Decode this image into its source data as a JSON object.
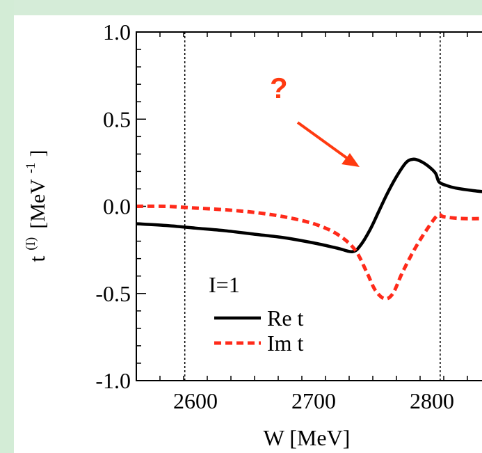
{
  "chart_data": {
    "type": "line",
    "title": "",
    "ylabel_main": "t",
    "ylabel_sup": "(I)",
    "ylabel_unit": "[MeV",
    "ylabel_unit_sup": "-1",
    "ylabel_unit_close": "]",
    "xlabel": "W [MeV]",
    "xlim": [
      2550,
      2850
    ],
    "ylim": [
      -1.0,
      1.0
    ],
    "xticks": [
      2600,
      2700,
      2800
    ],
    "yticks": [
      1.0,
      0.5,
      0.0,
      -0.5,
      -1.0
    ],
    "ytick_labels": [
      "1.0",
      "0.5",
      "0.0",
      "-0.5",
      "-1.0"
    ],
    "xtick_labels": [
      "2600",
      "2700",
      "2800"
    ],
    "xminor_step": 20,
    "yminor_step": 0.1,
    "vlines": [
      2591,
      2807
    ],
    "legend_title": "I=1",
    "series": [
      {
        "name": "Re t",
        "color": "#000000",
        "style": "solid",
        "points": [
          [
            2550,
            -0.1
          ],
          [
            2575,
            -0.11
          ],
          [
            2600,
            -0.125
          ],
          [
            2625,
            -0.14
          ],
          [
            2650,
            -0.16
          ],
          [
            2675,
            -0.18
          ],
          [
            2700,
            -0.21
          ],
          [
            2720,
            -0.24
          ],
          [
            2733,
            -0.26
          ],
          [
            2740,
            -0.22
          ],
          [
            2748,
            -0.13
          ],
          [
            2755,
            -0.03
          ],
          [
            2762,
            0.07
          ],
          [
            2770,
            0.17
          ],
          [
            2778,
            0.25
          ],
          [
            2784,
            0.27
          ],
          [
            2790,
            0.26
          ],
          [
            2797,
            0.23
          ],
          [
            2803,
            0.19
          ],
          [
            2806,
            0.14
          ],
          [
            2812,
            0.12
          ],
          [
            2820,
            0.105
          ],
          [
            2835,
            0.09
          ],
          [
            2850,
            0.08
          ]
        ]
      },
      {
        "name": "Im t",
        "color": "#ff2a1a",
        "style": "dashed",
        "points": [
          [
            2550,
            0.0
          ],
          [
            2575,
            0.0
          ],
          [
            2600,
            -0.01
          ],
          [
            2625,
            -0.02
          ],
          [
            2650,
            -0.035
          ],
          [
            2675,
            -0.06
          ],
          [
            2700,
            -0.1
          ],
          [
            2720,
            -0.16
          ],
          [
            2735,
            -0.25
          ],
          [
            2745,
            -0.38
          ],
          [
            2752,
            -0.48
          ],
          [
            2760,
            -0.53
          ],
          [
            2767,
            -0.5
          ],
          [
            2775,
            -0.38
          ],
          [
            2785,
            -0.25
          ],
          [
            2795,
            -0.14
          ],
          [
            2805,
            -0.05
          ],
          [
            2810,
            -0.06
          ],
          [
            2825,
            -0.07
          ],
          [
            2850,
            -0.07
          ]
        ]
      }
    ],
    "annotation": {
      "text": "?",
      "color": "#ff3a10"
    },
    "grid": false,
    "legend_position": "bottom-left"
  }
}
